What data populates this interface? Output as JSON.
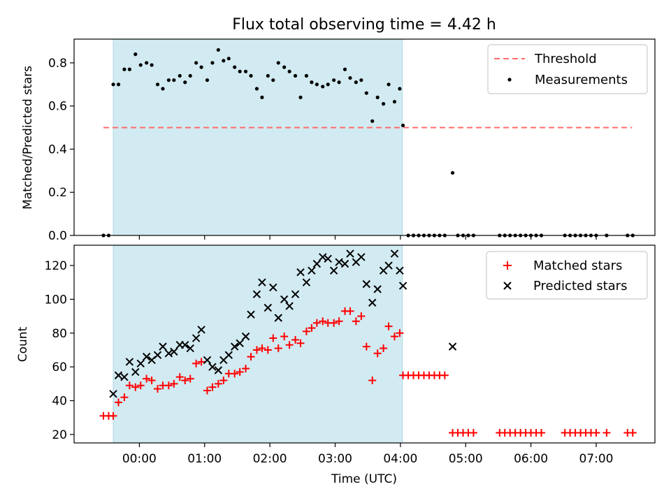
{
  "chart_data": [
    {
      "type": "scatter",
      "title": "Flux total observing time = 4.42 h",
      "ylabel": "Matched/Predicted stars",
      "xlabel": "",
      "xlim": [
        -1.0,
        7.9
      ],
      "ylim": [
        0,
        0.91
      ],
      "yticks": [
        0.0,
        0.2,
        0.4,
        0.6,
        0.8
      ],
      "shaded_span": {
        "x0": -0.4,
        "x1": 4.03,
        "color": "#add8e6"
      },
      "legend": "top-right",
      "threshold": {
        "name": "Threshold",
        "value": 0.5,
        "x0": -0.55,
        "x1": 7.55,
        "color": "#ff6b6b"
      },
      "series": [
        {
          "name": "Measurements",
          "color": "#000000",
          "points": [
            [
              -0.55,
              0.0
            ],
            [
              -0.47,
              0.0
            ],
            [
              -0.4,
              0.7
            ],
            [
              -0.32,
              0.7
            ],
            [
              -0.23,
              0.77
            ],
            [
              -0.15,
              0.77
            ],
            [
              -0.06,
              0.84
            ],
            [
              0.02,
              0.79
            ],
            [
              0.11,
              0.8
            ],
            [
              0.19,
              0.79
            ],
            [
              0.28,
              0.7
            ],
            [
              0.36,
              0.68
            ],
            [
              0.45,
              0.72
            ],
            [
              0.53,
              0.72
            ],
            [
              0.62,
              0.74
            ],
            [
              0.7,
              0.71
            ],
            [
              0.78,
              0.74
            ],
            [
              0.87,
              0.8
            ],
            [
              0.95,
              0.78
            ],
            [
              1.04,
              0.72
            ],
            [
              1.12,
              0.8
            ],
            [
              1.21,
              0.86
            ],
            [
              1.29,
              0.81
            ],
            [
              1.37,
              0.82
            ],
            [
              1.46,
              0.78
            ],
            [
              1.54,
              0.76
            ],
            [
              1.63,
              0.76
            ],
            [
              1.71,
              0.74
            ],
            [
              1.8,
              0.68
            ],
            [
              1.88,
              0.64
            ],
            [
              1.97,
              0.74
            ],
            [
              2.05,
              0.72
            ],
            [
              2.13,
              0.8
            ],
            [
              2.22,
              0.78
            ],
            [
              2.3,
              0.76
            ],
            [
              2.39,
              0.74
            ],
            [
              2.47,
              0.64
            ],
            [
              2.56,
              0.74
            ],
            [
              2.64,
              0.71
            ],
            [
              2.72,
              0.7
            ],
            [
              2.81,
              0.69
            ],
            [
              2.89,
              0.7
            ],
            [
              2.98,
              0.72
            ],
            [
              3.06,
              0.71
            ],
            [
              3.15,
              0.77
            ],
            [
              3.23,
              0.73
            ],
            [
              3.32,
              0.71
            ],
            [
              3.4,
              0.72
            ],
            [
              3.48,
              0.66
            ],
            [
              3.57,
              0.53
            ],
            [
              3.65,
              0.64
            ],
            [
              3.74,
              0.61
            ],
            [
              3.82,
              0.7
            ],
            [
              3.91,
              0.62
            ],
            [
              3.99,
              0.68
            ],
            [
              4.04,
              0.51
            ],
            [
              4.12,
              0.0
            ],
            [
              4.2,
              0.0
            ],
            [
              4.28,
              0.0
            ],
            [
              4.36,
              0.0
            ],
            [
              4.44,
              0.0
            ],
            [
              4.52,
              0.0
            ],
            [
              4.6,
              0.0
            ],
            [
              4.68,
              0.0
            ],
            [
              4.8,
              0.29
            ],
            [
              4.88,
              0.0
            ],
            [
              4.96,
              0.0
            ],
            [
              5.04,
              0.0
            ],
            [
              5.12,
              0.0
            ],
            [
              5.52,
              0.0
            ],
            [
              5.6,
              0.0
            ],
            [
              5.68,
              0.0
            ],
            [
              5.76,
              0.0
            ],
            [
              5.84,
              0.0
            ],
            [
              5.92,
              0.0
            ],
            [
              6.0,
              0.0
            ],
            [
              6.08,
              0.0
            ],
            [
              6.16,
              0.0
            ],
            [
              6.52,
              0.0
            ],
            [
              6.6,
              0.0
            ],
            [
              6.68,
              0.0
            ],
            [
              6.76,
              0.0
            ],
            [
              6.84,
              0.0
            ],
            [
              6.92,
              0.0
            ],
            [
              7.0,
              0.0
            ],
            [
              7.16,
              0.0
            ],
            [
              7.48,
              0.0
            ],
            [
              7.56,
              0.0
            ]
          ]
        }
      ]
    },
    {
      "type": "scatter",
      "title": "",
      "ylabel": "Count",
      "xlabel": "Time (UTC)",
      "xlim": [
        -1.0,
        7.9
      ],
      "ylim": [
        15,
        132
      ],
      "yticks": [
        20,
        40,
        60,
        80,
        100,
        120
      ],
      "xticks": [
        0,
        1,
        2,
        3,
        4,
        5,
        6,
        7
      ],
      "xtick_labels": [
        "00:00",
        "01:00",
        "02:00",
        "03:00",
        "04:00",
        "05:00",
        "06:00",
        "07:00"
      ],
      "shaded_span": {
        "x0": -0.4,
        "x1": 4.03,
        "color": "#add8e6"
      },
      "legend": "top-right",
      "series": [
        {
          "name": "Matched stars",
          "marker": "plus",
          "color": "#ff0000",
          "points": [
            [
              -0.55,
              31
            ],
            [
              -0.47,
              31
            ],
            [
              -0.4,
              31
            ],
            [
              -0.32,
              39
            ],
            [
              -0.23,
              42
            ],
            [
              -0.15,
              49
            ],
            [
              -0.06,
              48
            ],
            [
              0.02,
              49
            ],
            [
              0.11,
              53
            ],
            [
              0.19,
              52
            ],
            [
              0.28,
              47
            ],
            [
              0.36,
              49
            ],
            [
              0.45,
              49
            ],
            [
              0.53,
              50
            ],
            [
              0.62,
              54
            ],
            [
              0.7,
              52
            ],
            [
              0.78,
              53
            ],
            [
              0.87,
              62
            ],
            [
              0.95,
              63
            ],
            [
              1.04,
              46
            ],
            [
              1.12,
              48
            ],
            [
              1.21,
              50
            ],
            [
              1.29,
              52
            ],
            [
              1.37,
              56
            ],
            [
              1.46,
              56
            ],
            [
              1.54,
              57
            ],
            [
              1.63,
              59
            ],
            [
              1.71,
              66
            ],
            [
              1.8,
              70
            ],
            [
              1.88,
              71
            ],
            [
              1.97,
              70
            ],
            [
              2.05,
              77
            ],
            [
              2.13,
              71
            ],
            [
              2.22,
              78
            ],
            [
              2.3,
              73
            ],
            [
              2.39,
              76
            ],
            [
              2.47,
              74
            ],
            [
              2.56,
              81
            ],
            [
              2.64,
              83
            ],
            [
              2.72,
              86
            ],
            [
              2.81,
              87
            ],
            [
              2.89,
              86
            ],
            [
              2.98,
              86
            ],
            [
              3.06,
              87
            ],
            [
              3.15,
              93
            ],
            [
              3.23,
              93
            ],
            [
              3.32,
              87
            ],
            [
              3.4,
              90
            ],
            [
              3.48,
              72
            ],
            [
              3.57,
              52
            ],
            [
              3.65,
              68
            ],
            [
              3.74,
              71
            ],
            [
              3.82,
              84
            ],
            [
              3.91,
              78
            ],
            [
              3.99,
              80
            ],
            [
              4.04,
              55
            ],
            [
              4.12,
              55
            ],
            [
              4.2,
              55
            ],
            [
              4.28,
              55
            ],
            [
              4.36,
              55
            ],
            [
              4.44,
              55
            ],
            [
              4.52,
              55
            ],
            [
              4.6,
              55
            ],
            [
              4.68,
              55
            ],
            [
              4.8,
              21
            ],
            [
              4.88,
              21
            ],
            [
              4.96,
              21
            ],
            [
              5.04,
              21
            ],
            [
              5.12,
              21
            ],
            [
              5.52,
              21
            ],
            [
              5.6,
              21
            ],
            [
              5.68,
              21
            ],
            [
              5.76,
              21
            ],
            [
              5.84,
              21
            ],
            [
              5.92,
              21
            ],
            [
              6.0,
              21
            ],
            [
              6.08,
              21
            ],
            [
              6.16,
              21
            ],
            [
              6.52,
              21
            ],
            [
              6.6,
              21
            ],
            [
              6.68,
              21
            ],
            [
              6.76,
              21
            ],
            [
              6.84,
              21
            ],
            [
              6.92,
              21
            ],
            [
              7.0,
              21
            ],
            [
              7.16,
              21
            ],
            [
              7.48,
              21
            ],
            [
              7.56,
              21
            ]
          ]
        },
        {
          "name": "Predicted stars",
          "marker": "x",
          "color": "#000000",
          "points": [
            [
              -0.4,
              44
            ],
            [
              -0.32,
              55
            ],
            [
              -0.23,
              54
            ],
            [
              -0.15,
              63
            ],
            [
              -0.06,
              57
            ],
            [
              0.02,
              62
            ],
            [
              0.11,
              66
            ],
            [
              0.19,
              64
            ],
            [
              0.28,
              67
            ],
            [
              0.36,
              72
            ],
            [
              0.45,
              68
            ],
            [
              0.53,
              69
            ],
            [
              0.62,
              73
            ],
            [
              0.7,
              73
            ],
            [
              0.78,
              71
            ],
            [
              0.87,
              77
            ],
            [
              0.95,
              82
            ],
            [
              1.04,
              64
            ],
            [
              1.12,
              60
            ],
            [
              1.21,
              58
            ],
            [
              1.29,
              64
            ],
            [
              1.37,
              67
            ],
            [
              1.46,
              72
            ],
            [
              1.54,
              74
            ],
            [
              1.63,
              78
            ],
            [
              1.71,
              91
            ],
            [
              1.8,
              103
            ],
            [
              1.88,
              110
            ],
            [
              1.97,
              95
            ],
            [
              2.05,
              107
            ],
            [
              2.13,
              89
            ],
            [
              2.22,
              100
            ],
            [
              2.3,
              96
            ],
            [
              2.39,
              103
            ],
            [
              2.47,
              116
            ],
            [
              2.56,
              110
            ],
            [
              2.64,
              117
            ],
            [
              2.72,
              121
            ],
            [
              2.81,
              125
            ],
            [
              2.89,
              124
            ],
            [
              2.98,
              117
            ],
            [
              3.06,
              122
            ],
            [
              3.15,
              121
            ],
            [
              3.23,
              127
            ],
            [
              3.32,
              122
            ],
            [
              3.4,
              125
            ],
            [
              3.48,
              109
            ],
            [
              3.57,
              98
            ],
            [
              3.65,
              106
            ],
            [
              3.74,
              117
            ],
            [
              3.82,
              120
            ],
            [
              3.91,
              127
            ],
            [
              3.99,
              117
            ],
            [
              4.04,
              108
            ],
            [
              4.8,
              72
            ]
          ]
        }
      ]
    }
  ]
}
